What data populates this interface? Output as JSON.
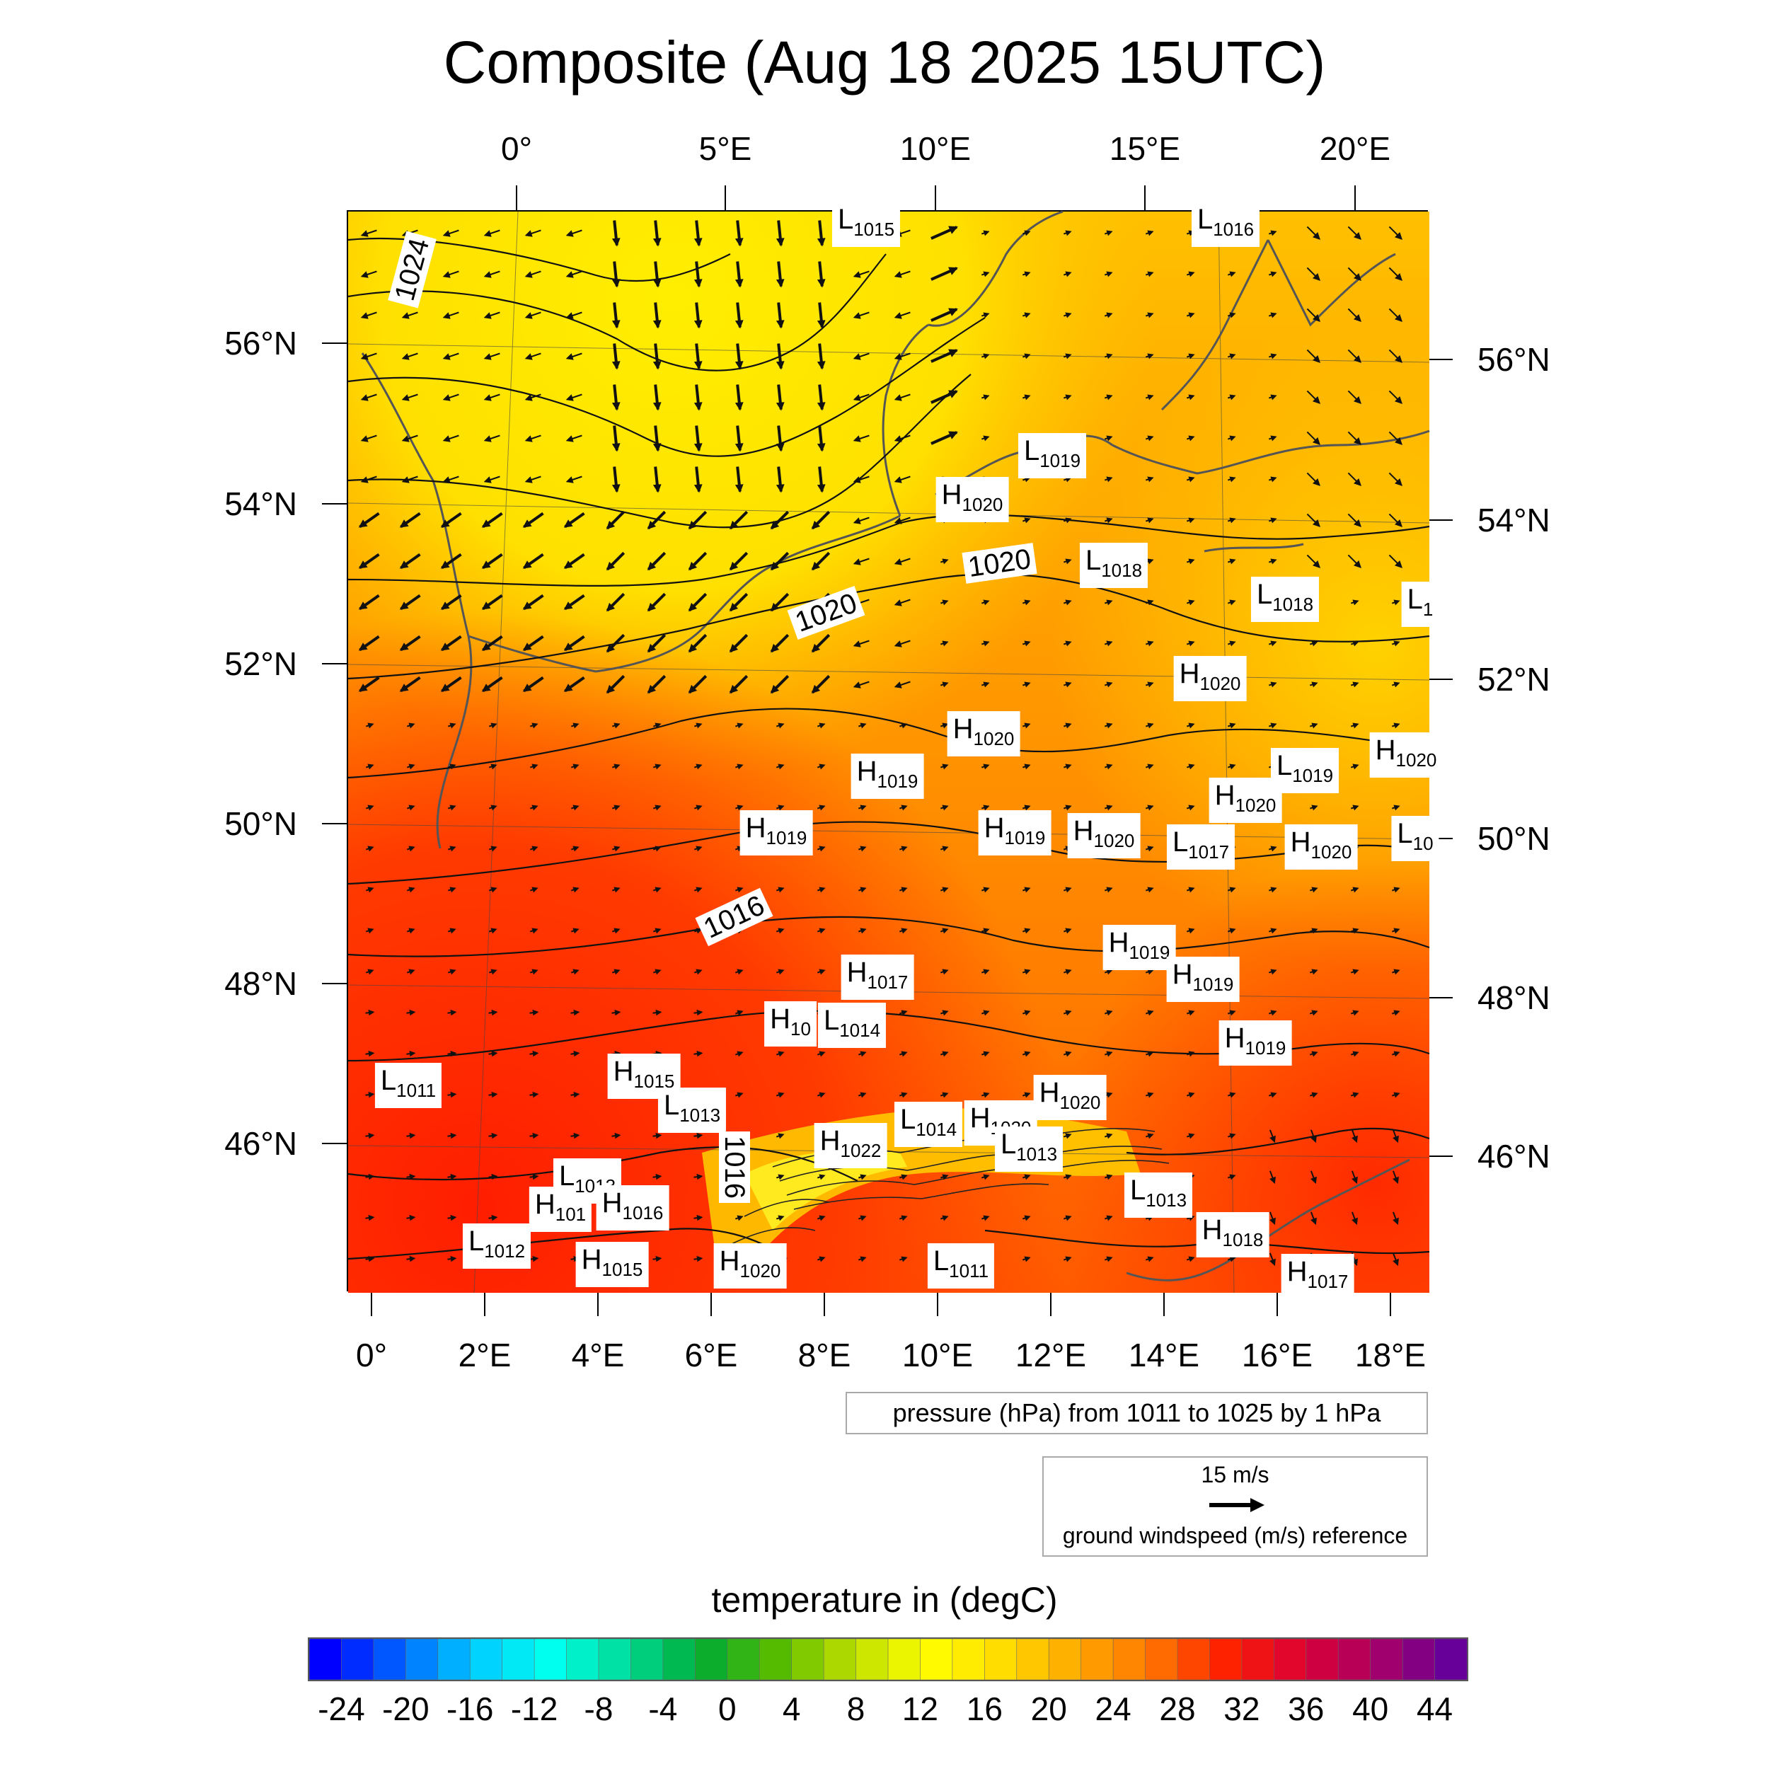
{
  "title": "Composite (Aug 18 2025 15UTC)",
  "axes": {
    "top_lon_labels": [
      "0°",
      "5°E",
      "10°E",
      "15°E",
      "20°E"
    ],
    "bottom_lon_labels": [
      "0°",
      "2°E",
      "4°E",
      "6°E",
      "8°E",
      "10°E",
      "12°E",
      "14°E",
      "16°E",
      "18°E"
    ],
    "left_lat_labels": [
      "56°N",
      "54°N",
      "52°N",
      "50°N",
      "48°N",
      "46°N"
    ],
    "right_lat_labels": [
      "56°N",
      "54°N",
      "52°N",
      "50°N",
      "48°N",
      "46°N"
    ]
  },
  "isobar_labels": [
    "1024",
    "1020",
    "1020",
    "1016",
    "1016"
  ],
  "pressure_centers": [
    {
      "type": "L",
      "value": "1015"
    },
    {
      "type": "L",
      "value": "1016"
    },
    {
      "type": "L",
      "value": "1019"
    },
    {
      "type": "H",
      "value": "1020"
    },
    {
      "type": "L",
      "value": "1018"
    },
    {
      "type": "L",
      "value": "1018"
    },
    {
      "type": "L",
      "value": "1"
    },
    {
      "type": "H",
      "value": "1020"
    },
    {
      "type": "H",
      "value": "1020"
    },
    {
      "type": "H",
      "value": "1020"
    },
    {
      "type": "L",
      "value": "1019"
    },
    {
      "type": "H",
      "value": "1019"
    },
    {
      "type": "H",
      "value": "1020"
    },
    {
      "type": "H",
      "value": "1019"
    },
    {
      "type": "H",
      "value": "1019"
    },
    {
      "type": "H",
      "value": "1020"
    },
    {
      "type": "L",
      "value": "1017"
    },
    {
      "type": "H",
      "value": "1020"
    },
    {
      "type": "L",
      "value": "10"
    },
    {
      "type": "H",
      "value": "1019"
    },
    {
      "type": "H",
      "value": "1019"
    },
    {
      "type": "H",
      "value": "1017"
    },
    {
      "type": "H",
      "value": "10"
    },
    {
      "type": "L",
      "value": "1014"
    },
    {
      "type": "H",
      "value": "1019"
    },
    {
      "type": "L",
      "value": "1011"
    },
    {
      "type": "H",
      "value": "1015"
    },
    {
      "type": "L",
      "value": "1013"
    },
    {
      "type": "H",
      "value": "1020"
    },
    {
      "type": "L",
      "value": "1014"
    },
    {
      "type": "H",
      "value": "1020"
    },
    {
      "type": "H",
      "value": "1022"
    },
    {
      "type": "L",
      "value": "1013"
    },
    {
      "type": "L",
      "value": "1013"
    },
    {
      "type": "H",
      "value": "101"
    },
    {
      "type": "L",
      "value": "1013"
    },
    {
      "type": "H",
      "value": "1016"
    },
    {
      "type": "L",
      "value": "1012"
    },
    {
      "type": "H",
      "value": "1015"
    },
    {
      "type": "H",
      "value": "1020"
    },
    {
      "type": "L",
      "value": "1011"
    },
    {
      "type": "H",
      "value": "1018"
    },
    {
      "type": "H",
      "value": "1017"
    }
  ],
  "legend": {
    "pressure_text": "pressure (hPa) from 1011 to 1025 by 1 hPa",
    "wind_speed_label": "15 m/s",
    "wind_caption": "ground windspeed (m/s) reference"
  },
  "colorbar": {
    "title": "temperature in (degC)",
    "min": -26,
    "max": 46,
    "step": 2,
    "tick_labels": [
      "-24",
      "-20",
      "-16",
      "-12",
      "-8",
      "-4",
      "0",
      "4",
      "8",
      "12",
      "16",
      "20",
      "24",
      "28",
      "32",
      "36",
      "40",
      "44"
    ],
    "color_stops": [
      "#0000ff",
      "#0066ff",
      "#00ccff",
      "#00ffee",
      "#00dd99",
      "#00aa33",
      "#55bb00",
      "#bbdd00",
      "#ffff00",
      "#ffdd00",
      "#ffaa00",
      "#ff7700",
      "#ff2200",
      "#dd0033",
      "#aa0066",
      "#660099"
    ]
  },
  "map_colors": {
    "hot": "#ff2a00",
    "warm": "#ff7a00",
    "mild": "#ffb000",
    "cool": "#ffe100"
  }
}
